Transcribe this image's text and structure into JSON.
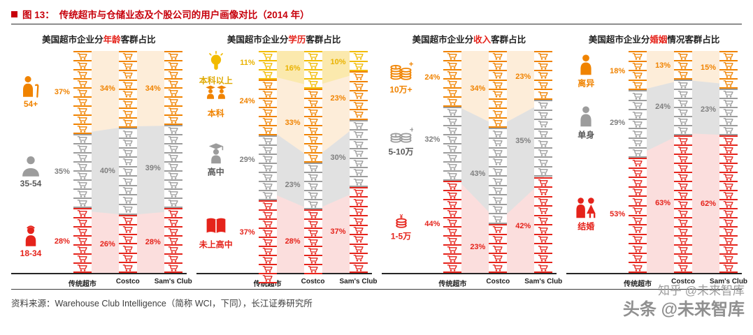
{
  "header": {
    "figure_label": "图 13：",
    "title": "传统超市与仓储业态及个股公司的用户画像对比（2014 年）"
  },
  "colors": {
    "red": "#E5231B",
    "orange": "#F08300",
    "yellow": "#F2BB00",
    "gray": "#9C9C9C",
    "header_red": "#C7000B",
    "keyword_red": "#E5231B",
    "axis_dark": "#262626"
  },
  "categories": [
    "传统超市",
    "Costco",
    "Sam's Club"
  ],
  "chart_data": [
    {
      "id": "age",
      "type": "bar",
      "stacked": true,
      "unit": "%",
      "legend_position": "left",
      "title_prefix": "美国超市企业分",
      "keyword": "年龄",
      "title_suffix": "客群占比",
      "categories": [
        "传统超市",
        "Costco",
        "Sam's Club"
      ],
      "series": [
        {
          "name": "54+",
          "color_key": "orange",
          "icon": "elderly-icon",
          "values": [
            37,
            34,
            34
          ]
        },
        {
          "name": "35-54",
          "color_key": "gray",
          "icon": "adult-icon",
          "values": [
            35,
            40,
            39
          ]
        },
        {
          "name": "18-34",
          "color_key": "red",
          "icon": "child-icon",
          "values": [
            28,
            26,
            28
          ]
        }
      ]
    },
    {
      "id": "education",
      "type": "bar",
      "stacked": true,
      "unit": "%",
      "legend_position": "left",
      "title_prefix": "美国超市企业分",
      "keyword": "学历",
      "title_suffix": "客群占比",
      "categories": [
        "传统超市",
        "Costco",
        "Sam's Club"
      ],
      "series": [
        {
          "name": "本科以上",
          "color_key": "yellow",
          "icon": "bulb-icon",
          "values": [
            11,
            16,
            10
          ]
        },
        {
          "name": "本科",
          "color_key": "orange",
          "icon": "grads-icon",
          "values": [
            24,
            33,
            23
          ]
        },
        {
          "name": "高中",
          "color_key": "gray",
          "icon": "grad-icon",
          "values": [
            29,
            23,
            30
          ]
        },
        {
          "name": "未上高中",
          "color_key": "red",
          "icon": "books-icon",
          "values": [
            37,
            28,
            37
          ]
        }
      ]
    },
    {
      "id": "income",
      "type": "bar",
      "stacked": true,
      "unit": "%",
      "legend_position": "left",
      "title_prefix": "美国超市企业分",
      "keyword": "收入",
      "title_suffix": "客群占比",
      "categories": [
        "传统超市",
        "Costco",
        "Sam's Club"
      ],
      "series": [
        {
          "name": "10万+",
          "color_key": "orange",
          "icon": "coins3-icon",
          "values": [
            24,
            34,
            23
          ]
        },
        {
          "name": "5-10万",
          "color_key": "gray",
          "icon": "coins2-icon",
          "values": [
            32,
            43,
            35
          ]
        },
        {
          "name": "1-5万",
          "color_key": "red",
          "icon": "coin1-icon",
          "values": [
            44,
            23,
            42
          ]
        }
      ]
    },
    {
      "id": "marital",
      "type": "bar",
      "stacked": true,
      "unit": "%",
      "legend_position": "left",
      "title_prefix": "美国超市企业分",
      "keyword": "婚姻",
      "title_suffix": "情况客群占比",
      "categories": [
        "传统超市",
        "Costco",
        "Sam's Club"
      ],
      "series": [
        {
          "name": "离异",
          "color_key": "orange",
          "icon": "divorced-icon",
          "values": [
            18,
            13,
            15
          ]
        },
        {
          "name": "单身",
          "color_key": "gray",
          "icon": "single-icon",
          "values": [
            29,
            24,
            23
          ]
        },
        {
          "name": "结婚",
          "color_key": "red",
          "icon": "couple-icon",
          "values": [
            53,
            63,
            62
          ]
        }
      ]
    }
  ],
  "footer": {
    "source": "资料来源：Warehouse Club Intelligence（简称 WCI，下同），长江证券研究所"
  },
  "watermarks": {
    "line1": "知乎 @未来智库",
    "line2": "头条 @未来智库"
  }
}
